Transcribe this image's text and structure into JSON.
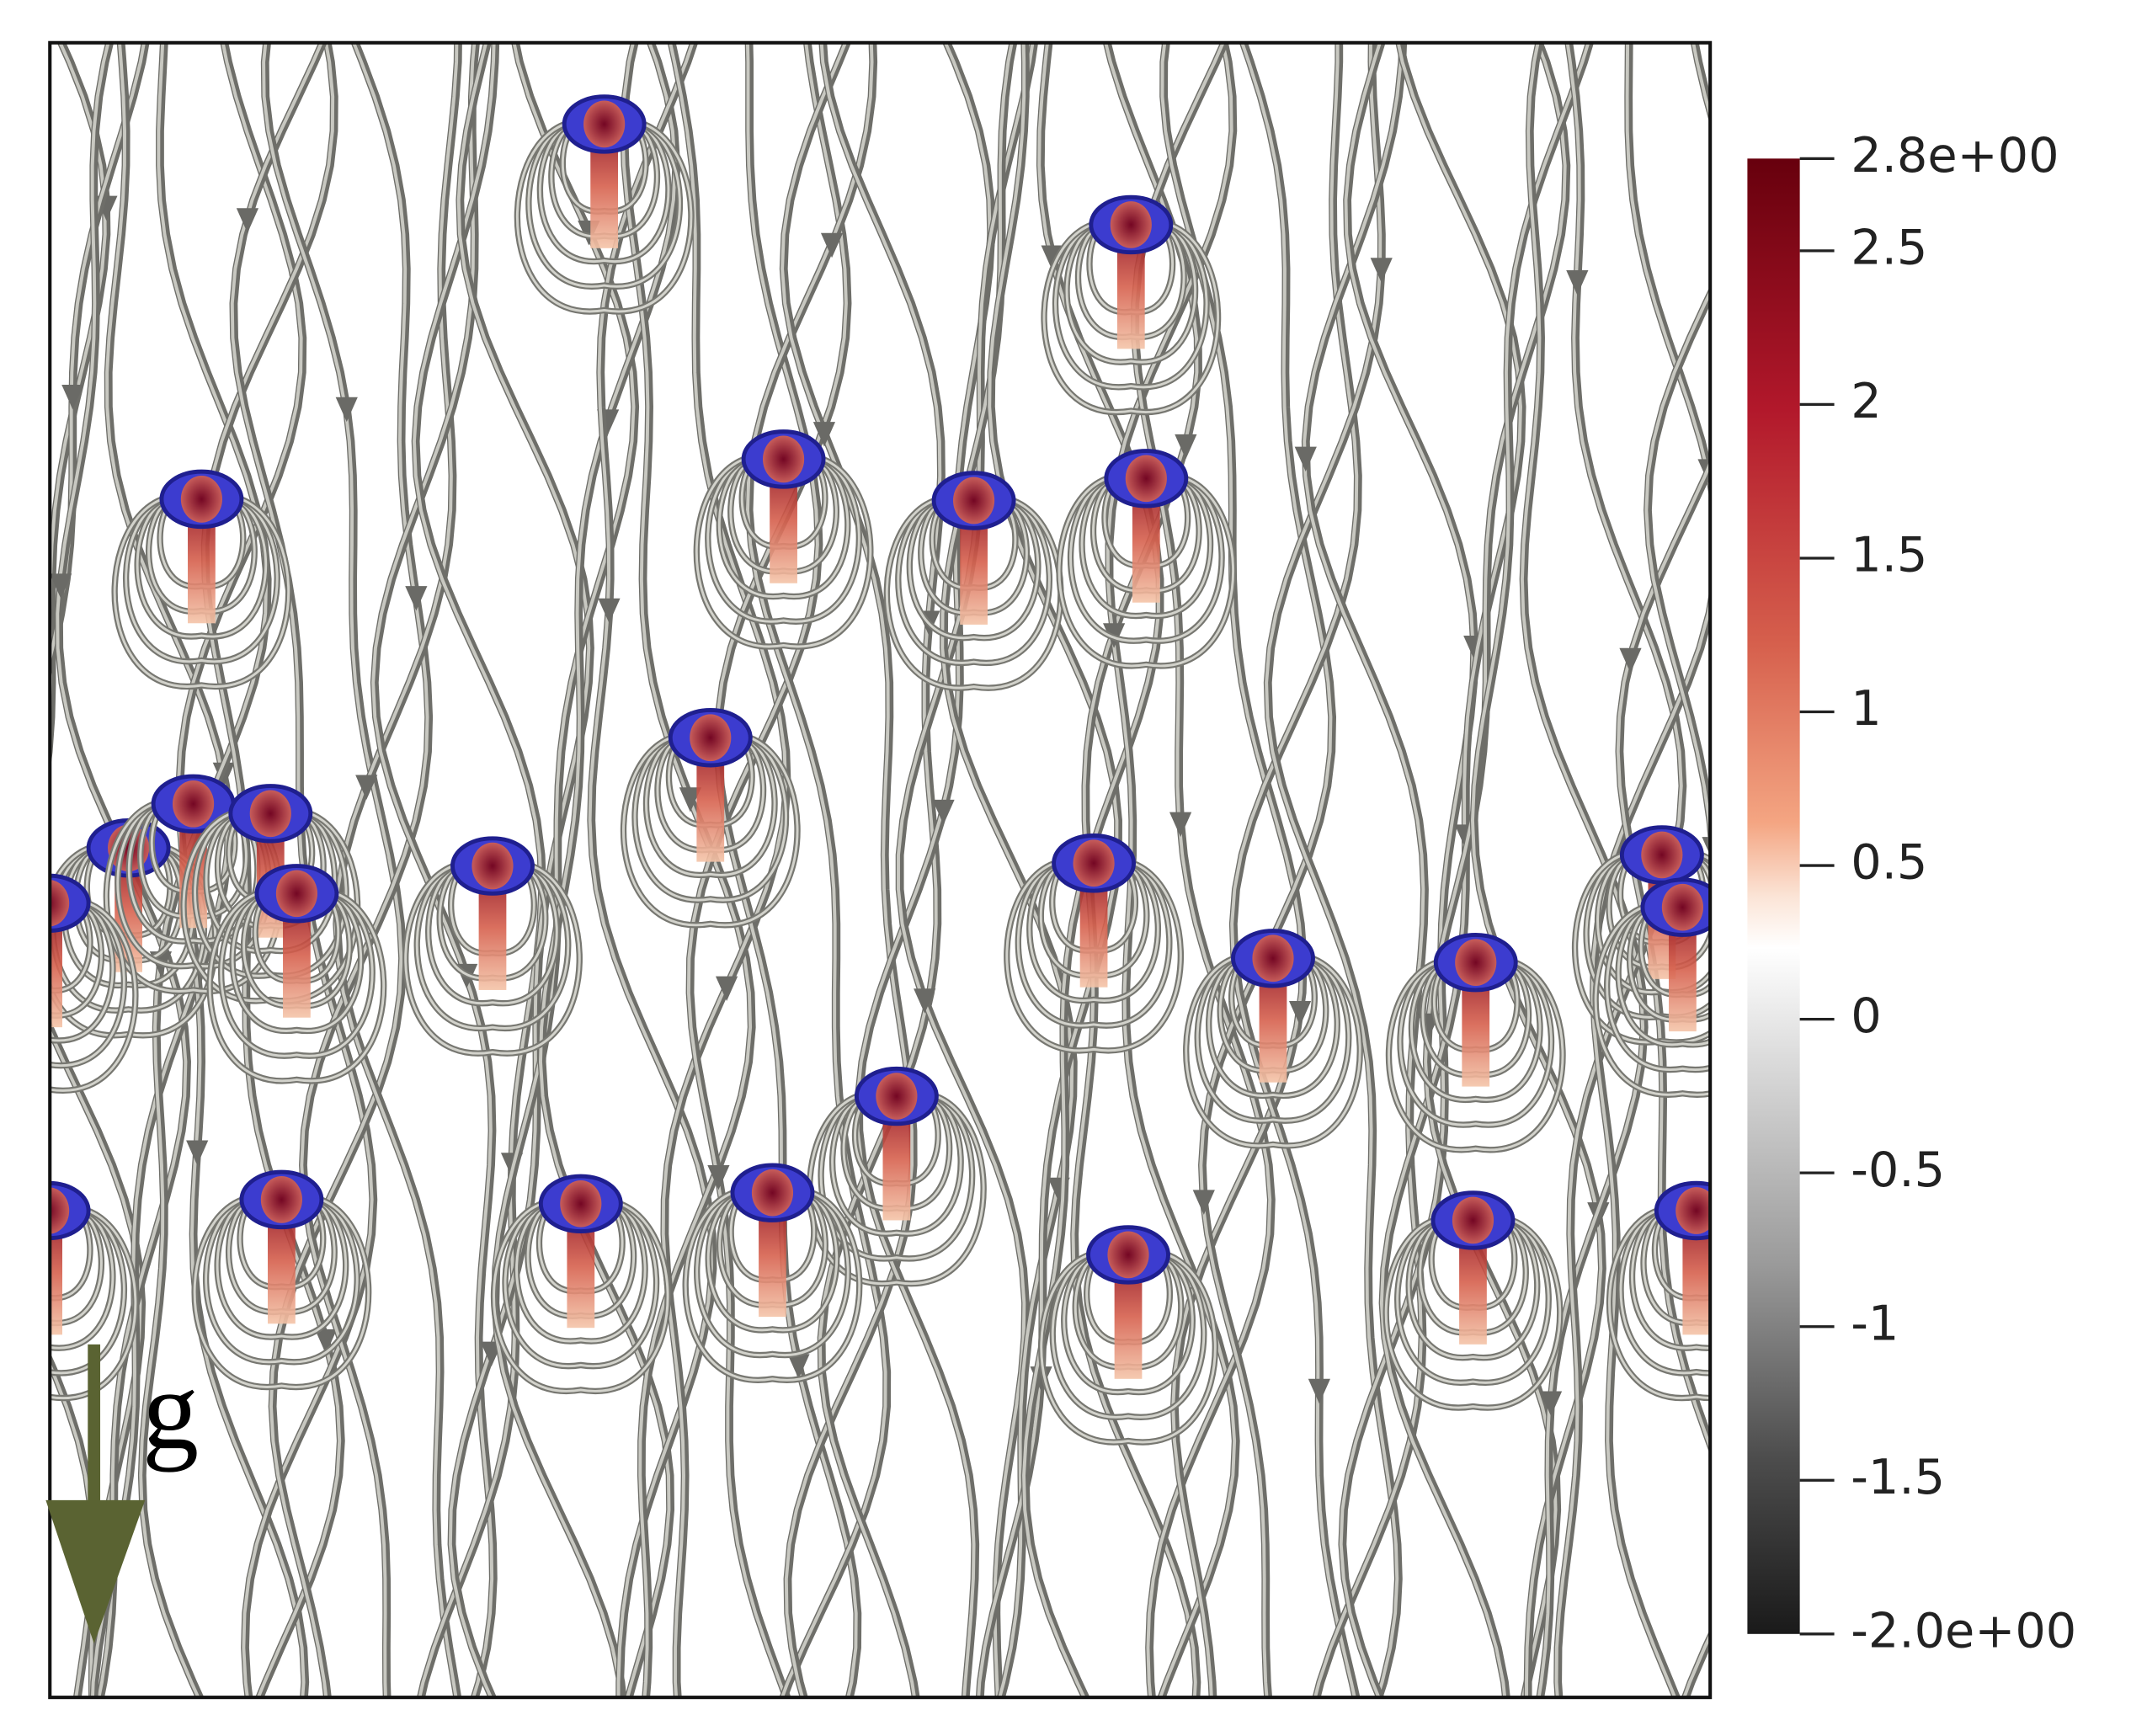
{
  "colorbar": {
    "range": [
      -2,
      2.8
    ],
    "ticks": [
      {
        "value": 2.8,
        "label": "2.8e+00"
      },
      2.5,
      2,
      1.5,
      1,
      0.5,
      0,
      -0.5,
      -1,
      -1.5,
      {
        "value": -2,
        "label": "-2.0e+00"
      }
    ]
  },
  "gravity_label": "g"
}
